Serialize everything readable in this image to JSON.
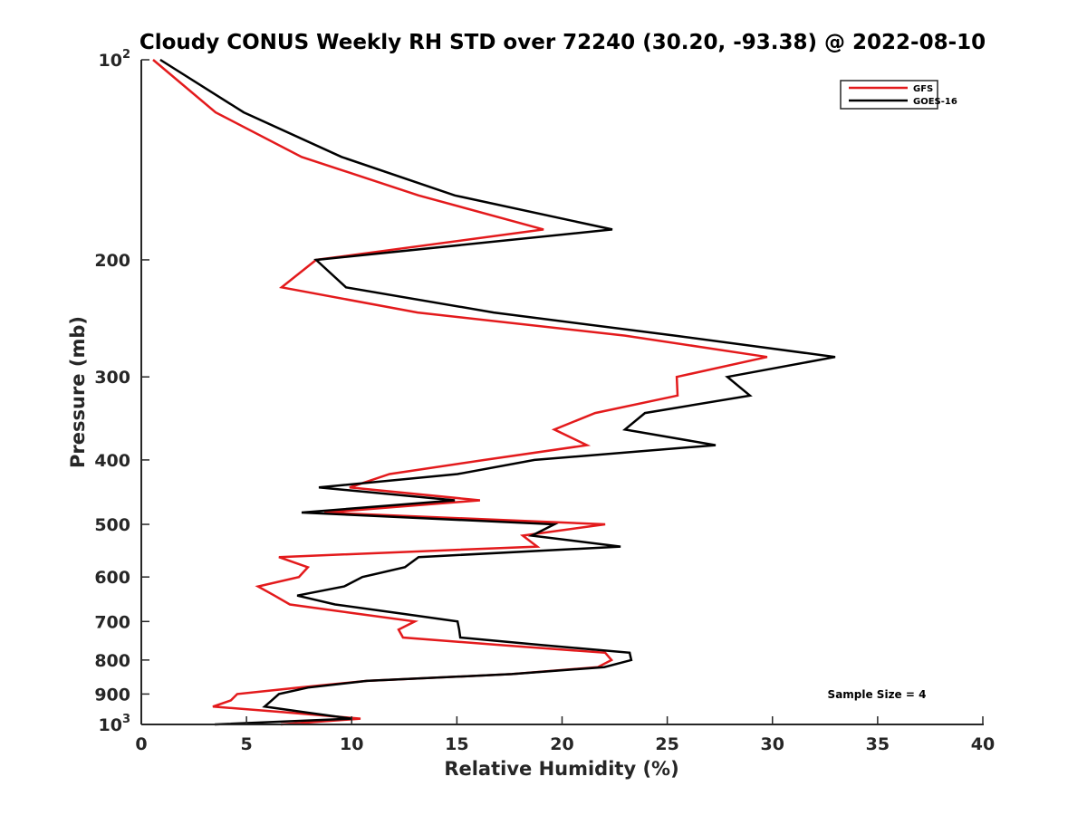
{
  "chart_data": {
    "type": "line",
    "title": "Cloudy CONUS Weekly RH STD over 72240 (30.20, -93.38) @ 2022-08-10",
    "xlabel": "Relative Humidity (%)",
    "ylabel": "Pressure (mb)",
    "xlim": [
      0,
      40
    ],
    "ylim": [
      100,
      1000
    ],
    "yscale": "log",
    "yaxis_reversed": true,
    "grid": false,
    "x_ticks": [
      0,
      5,
      10,
      15,
      20,
      25,
      30,
      35,
      40
    ],
    "x_tick_labels": [
      "0",
      "5",
      "10",
      "15",
      "20",
      "25",
      "30",
      "35",
      "40"
    ],
    "y_ticks": [
      {
        "value": 100,
        "base": "10",
        "exp": "2",
        "label": ""
      },
      {
        "value": 200,
        "label": "200"
      },
      {
        "value": 300,
        "label": "300"
      },
      {
        "value": 400,
        "label": "400"
      },
      {
        "value": 500,
        "label": "500"
      },
      {
        "value": 600,
        "label": "600"
      },
      {
        "value": 700,
        "label": "700"
      },
      {
        "value": 800,
        "label": "800"
      },
      {
        "value": 900,
        "label": "900"
      },
      {
        "value": 1000,
        "base": "10",
        "exp": "3",
        "label": ""
      }
    ],
    "pressure": [
      100,
      120,
      140,
      160,
      180,
      200,
      220,
      240,
      260,
      280,
      300,
      320,
      340,
      360,
      380,
      400,
      420,
      440,
      460,
      480,
      500,
      520,
      540,
      560,
      580,
      600,
      620,
      640,
      660,
      680,
      700,
      720,
      740,
      760,
      780,
      800,
      820,
      840,
      860,
      880,
      900,
      920,
      940,
      960,
      980,
      1000
    ],
    "series": [
      {
        "name": "GFS",
        "color": "#e31a1c",
        "values": [
          0.56,
          3.53,
          7.62,
          13.18,
          19.12,
          8.31,
          6.67,
          13.13,
          22.99,
          29.75,
          25.45,
          25.49,
          21.57,
          19.63,
          21.18,
          16.32,
          11.8,
          9.9,
          16.1,
          8.7,
          22.05,
          18.13,
          18.82,
          6.54,
          7.92,
          7.49,
          5.55,
          6.33,
          7.06,
          10.08,
          13.0,
          12.23,
          12.44,
          17.18,
          22.05,
          22.35,
          21.7,
          17.61,
          10.72,
          7.49,
          4.56,
          4.26,
          3.4,
          7.06,
          10.42,
          6.63
        ]
      },
      {
        "name": "GOES-16",
        "color": "#000000",
        "values": [
          0.9,
          4.87,
          9.52,
          14.9,
          22.39,
          8.31,
          9.73,
          16.75,
          25.36,
          32.98,
          27.86,
          28.93,
          23.94,
          22.99,
          27.3,
          18.69,
          15.03,
          8.44,
          14.9,
          7.62,
          19.63,
          18.56,
          22.78,
          13.18,
          12.53,
          10.51,
          9.64,
          7.41,
          9.21,
          12.23,
          15.03,
          15.11,
          15.16,
          19.12,
          23.21,
          23.29,
          22.0,
          17.61,
          10.72,
          7.92,
          6.54,
          6.2,
          5.86,
          7.92,
          9.99,
          3.49
        ]
      }
    ],
    "legend": {
      "placement": "top-right",
      "entries": [
        "GFS",
        "GOES-16"
      ]
    },
    "annotations": [
      {
        "text": "Sample Size = 4",
        "placement": "bottom-right"
      }
    ]
  }
}
